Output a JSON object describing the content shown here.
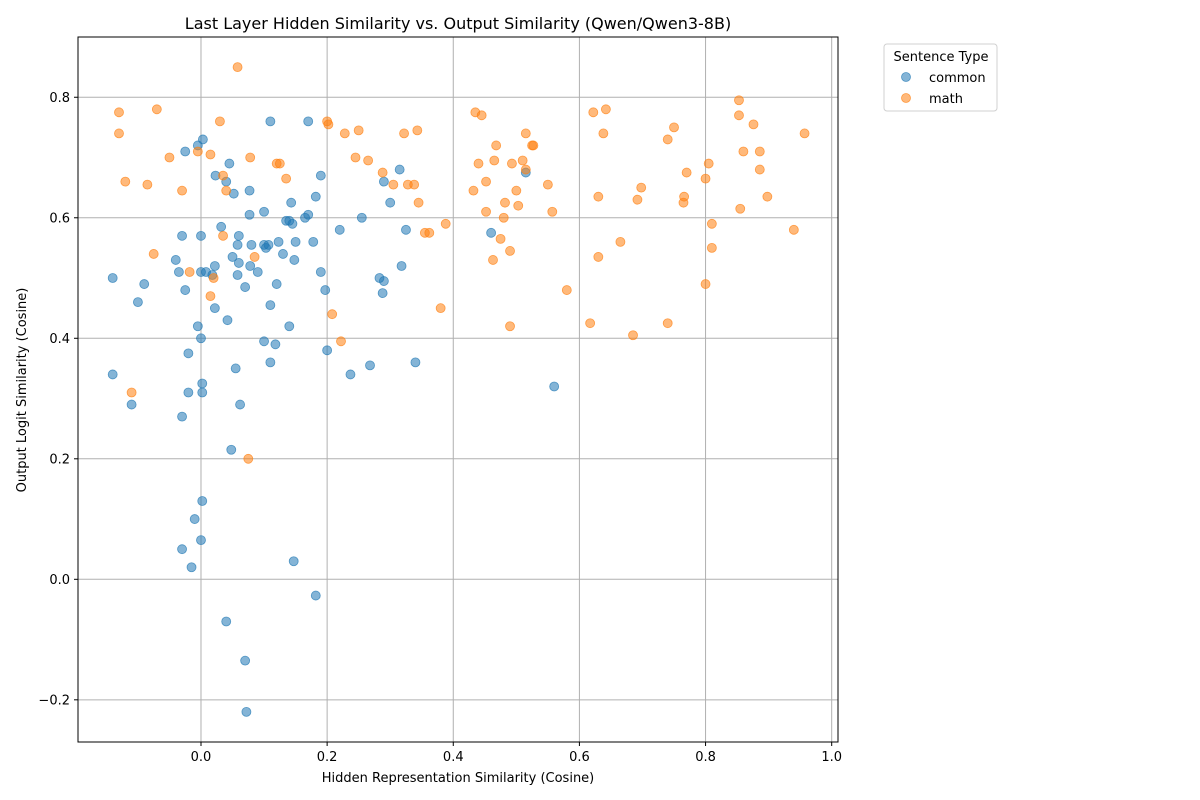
{
  "chart_data": {
    "type": "scatter",
    "title": "Last Layer Hidden Similarity vs. Output Similarity (Qwen/Qwen3-8B)",
    "xlabel": "Hidden Representation Similarity (Cosine)",
    "ylabel": "Output Logit Similarity (Cosine)",
    "xlim": [
      -0.195,
      1.01
    ],
    "ylim": [
      -0.27,
      0.9
    ],
    "xticks": [
      0.0,
      0.2,
      0.4,
      0.6,
      0.8,
      1.0
    ],
    "xtick_labels": [
      "0.0",
      "0.2",
      "0.4",
      "0.6",
      "0.8",
      "1.0"
    ],
    "yticks": [
      -0.2,
      0.0,
      0.2,
      0.4,
      0.6,
      0.8
    ],
    "ytick_labels": [
      "−0.2",
      "0.0",
      "0.2",
      "0.4",
      "0.6",
      "0.8"
    ],
    "grid": true,
    "legend": {
      "title": "Sentence Type",
      "placement": "outside-top-right"
    },
    "series": [
      {
        "name": "common",
        "color": "#1f77b4",
        "points": [
          [
            -0.14,
            0.5
          ],
          [
            -0.14,
            0.34
          ],
          [
            -0.11,
            0.29
          ],
          [
            -0.1,
            0.46
          ],
          [
            -0.09,
            0.49
          ],
          [
            -0.04,
            0.53
          ],
          [
            -0.035,
            0.51
          ],
          [
            -0.03,
            0.57
          ],
          [
            -0.03,
            0.27
          ],
          [
            -0.025,
            0.48
          ],
          [
            -0.025,
            0.71
          ],
          [
            -0.02,
            0.31
          ],
          [
            -0.02,
            0.375
          ],
          [
            -0.015,
            0.02
          ],
          [
            -0.01,
            0.1
          ],
          [
            -0.03,
            0.05
          ],
          [
            -0.005,
            0.42
          ],
          [
            -0.005,
            0.72
          ],
          [
            0.0,
            0.57
          ],
          [
            0.0,
            0.51
          ],
          [
            0.0,
            0.4
          ],
          [
            0.002,
            0.325
          ],
          [
            0.002,
            0.31
          ],
          [
            0.002,
            0.13
          ],
          [
            0.0,
            0.065
          ],
          [
            0.003,
            0.73
          ],
          [
            0.008,
            0.51
          ],
          [
            0.018,
            0.505
          ],
          [
            0.022,
            0.45
          ],
          [
            0.022,
            0.52
          ],
          [
            0.023,
            0.67
          ],
          [
            0.032,
            0.585
          ],
          [
            0.04,
            0.66
          ],
          [
            0.042,
            0.43
          ],
          [
            0.045,
            0.69
          ],
          [
            0.04,
            -0.07
          ],
          [
            0.048,
            0.215
          ],
          [
            0.05,
            0.535
          ],
          [
            0.052,
            0.64
          ],
          [
            0.055,
            0.35
          ],
          [
            0.058,
            0.505
          ],
          [
            0.058,
            0.555
          ],
          [
            0.06,
            0.525
          ],
          [
            0.06,
            0.57
          ],
          [
            0.062,
            0.29
          ],
          [
            0.07,
            0.485
          ],
          [
            0.07,
            -0.135
          ],
          [
            0.072,
            -0.22
          ],
          [
            0.077,
            0.645
          ],
          [
            0.077,
            0.605
          ],
          [
            0.078,
            0.52
          ],
          [
            0.08,
            0.555
          ],
          [
            0.09,
            0.51
          ],
          [
            0.1,
            0.61
          ],
          [
            0.1,
            0.555
          ],
          [
            0.1,
            0.395
          ],
          [
            0.103,
            0.55
          ],
          [
            0.107,
            0.555
          ],
          [
            0.11,
            0.76
          ],
          [
            0.11,
            0.455
          ],
          [
            0.11,
            0.36
          ],
          [
            0.118,
            0.39
          ],
          [
            0.12,
            0.49
          ],
          [
            0.123,
            0.56
          ],
          [
            0.13,
            0.54
          ],
          [
            0.135,
            0.595
          ],
          [
            0.14,
            0.595
          ],
          [
            0.14,
            0.42
          ],
          [
            0.143,
            0.625
          ],
          [
            0.145,
            0.59
          ],
          [
            0.148,
            0.53
          ],
          [
            0.15,
            0.56
          ],
          [
            0.147,
            0.03
          ],
          [
            0.165,
            0.6
          ],
          [
            0.17,
            0.605
          ],
          [
            0.17,
            0.76
          ],
          [
            0.178,
            0.56
          ],
          [
            0.182,
            0.635
          ],
          [
            0.182,
            -0.027
          ],
          [
            0.19,
            0.67
          ],
          [
            0.19,
            0.51
          ],
          [
            0.197,
            0.48
          ],
          [
            0.2,
            0.38
          ],
          [
            0.22,
            0.58
          ],
          [
            0.237,
            0.34
          ],
          [
            0.255,
            0.6
          ],
          [
            0.268,
            0.355
          ],
          [
            0.283,
            0.5
          ],
          [
            0.288,
            0.475
          ],
          [
            0.29,
            0.495
          ],
          [
            0.29,
            0.66
          ],
          [
            0.3,
            0.625
          ],
          [
            0.315,
            0.68
          ],
          [
            0.318,
            0.52
          ],
          [
            0.325,
            0.58
          ],
          [
            0.34,
            0.36
          ],
          [
            0.46,
            0.575
          ],
          [
            0.515,
            0.675
          ],
          [
            0.56,
            0.32
          ]
        ]
      },
      {
        "name": "math",
        "color": "#ff7f0e",
        "points": [
          [
            -0.13,
            0.775
          ],
          [
            -0.13,
            0.74
          ],
          [
            -0.12,
            0.66
          ],
          [
            -0.11,
            0.31
          ],
          [
            -0.085,
            0.655
          ],
          [
            -0.075,
            0.54
          ],
          [
            -0.07,
            0.78
          ],
          [
            -0.05,
            0.7
          ],
          [
            -0.03,
            0.645
          ],
          [
            -0.018,
            0.51
          ],
          [
            -0.005,
            0.71
          ],
          [
            0.015,
            0.705
          ],
          [
            0.015,
            0.47
          ],
          [
            0.02,
            0.5
          ],
          [
            0.03,
            0.76
          ],
          [
            0.035,
            0.67
          ],
          [
            0.035,
            0.57
          ],
          [
            0.04,
            0.645
          ],
          [
            0.058,
            0.85
          ],
          [
            0.078,
            0.7
          ],
          [
            0.075,
            0.2
          ],
          [
            0.085,
            0.535
          ],
          [
            0.12,
            0.69
          ],
          [
            0.125,
            0.69
          ],
          [
            0.135,
            0.665
          ],
          [
            0.2,
            0.76
          ],
          [
            0.202,
            0.755
          ],
          [
            0.208,
            0.44
          ],
          [
            0.222,
            0.395
          ],
          [
            0.228,
            0.74
          ],
          [
            0.245,
            0.7
          ],
          [
            0.25,
            0.745
          ],
          [
            0.265,
            0.695
          ],
          [
            0.288,
            0.675
          ],
          [
            0.305,
            0.655
          ],
          [
            0.322,
            0.74
          ],
          [
            0.328,
            0.655
          ],
          [
            0.338,
            0.655
          ],
          [
            0.343,
            0.745
          ],
          [
            0.345,
            0.625
          ],
          [
            0.355,
            0.575
          ],
          [
            0.362,
            0.575
          ],
          [
            0.38,
            0.45
          ],
          [
            0.388,
            0.59
          ],
          [
            0.432,
            0.645
          ],
          [
            0.435,
            0.775
          ],
          [
            0.44,
            0.69
          ],
          [
            0.445,
            0.77
          ],
          [
            0.452,
            0.61
          ],
          [
            0.452,
            0.66
          ],
          [
            0.463,
            0.53
          ],
          [
            0.465,
            0.695
          ],
          [
            0.468,
            0.72
          ],
          [
            0.475,
            0.565
          ],
          [
            0.48,
            0.6
          ],
          [
            0.482,
            0.625
          ],
          [
            0.49,
            0.545
          ],
          [
            0.49,
            0.42
          ],
          [
            0.493,
            0.69
          ],
          [
            0.5,
            0.645
          ],
          [
            0.503,
            0.62
          ],
          [
            0.51,
            0.695
          ],
          [
            0.515,
            0.74
          ],
          [
            0.515,
            0.68
          ],
          [
            0.525,
            0.72
          ],
          [
            0.527,
            0.72
          ],
          [
            0.55,
            0.655
          ],
          [
            0.557,
            0.61
          ],
          [
            0.58,
            0.48
          ],
          [
            0.617,
            0.425
          ],
          [
            0.622,
            0.775
          ],
          [
            0.63,
            0.535
          ],
          [
            0.63,
            0.635
          ],
          [
            0.638,
            0.74
          ],
          [
            0.642,
            0.78
          ],
          [
            0.665,
            0.56
          ],
          [
            0.685,
            0.405
          ],
          [
            0.692,
            0.63
          ],
          [
            0.698,
            0.65
          ],
          [
            0.74,
            0.73
          ],
          [
            0.74,
            0.425
          ],
          [
            0.75,
            0.75
          ],
          [
            0.765,
            0.625
          ],
          [
            0.766,
            0.635
          ],
          [
            0.77,
            0.675
          ],
          [
            0.8,
            0.665
          ],
          [
            0.8,
            0.49
          ],
          [
            0.805,
            0.69
          ],
          [
            0.81,
            0.59
          ],
          [
            0.81,
            0.55
          ],
          [
            0.853,
            0.795
          ],
          [
            0.853,
            0.77
          ],
          [
            0.855,
            0.615
          ],
          [
            0.86,
            0.71
          ],
          [
            0.876,
            0.755
          ],
          [
            0.886,
            0.68
          ],
          [
            0.886,
            0.71
          ],
          [
            0.898,
            0.635
          ],
          [
            0.94,
            0.58
          ],
          [
            0.957,
            0.74
          ]
        ]
      }
    ]
  }
}
